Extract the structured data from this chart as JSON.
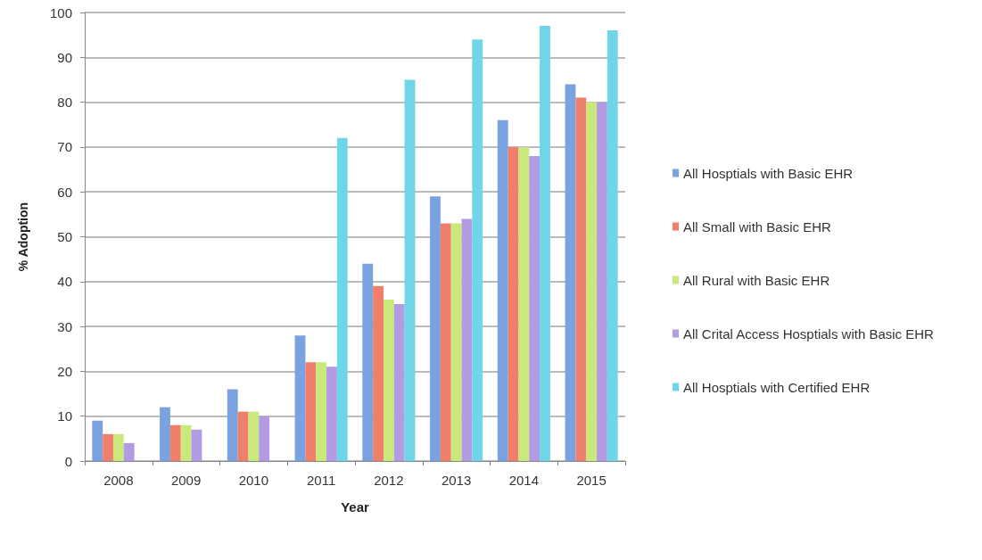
{
  "chart_data": {
    "type": "bar",
    "xlabel": "Year",
    "ylabel": "% Adoption",
    "categories": [
      "2008",
      "2009",
      "2010",
      "2011",
      "2012",
      "2013",
      "2014",
      "2015"
    ],
    "series": [
      {
        "name": "All Hosptials with Basic EHR",
        "color": "#7aa2e0",
        "values": [
          9,
          12,
          16,
          28,
          44,
          59,
          76,
          84
        ]
      },
      {
        "name": "All Small with Basic EHR",
        "color": "#ef7f6a",
        "values": [
          6,
          8,
          11,
          22,
          39,
          53,
          70,
          81
        ]
      },
      {
        "name": "All Rural with Basic EHR",
        "color": "#c9e97a",
        "values": [
          6,
          8,
          11,
          22,
          36,
          53,
          70,
          80
        ]
      },
      {
        "name": "All Crital Access Hosptials with Basic EHR",
        "color": "#b39be3",
        "values": [
          4,
          7,
          10,
          21,
          35,
          54,
          68,
          80
        ]
      },
      {
        "name": "All Hosptials with Certified EHR",
        "color": "#6fd6ea",
        "values": [
          null,
          null,
          null,
          72,
          85,
          94,
          97,
          96
        ]
      }
    ],
    "ylim": [
      0,
      100
    ],
    "yticks": [
      0,
      10,
      20,
      30,
      40,
      50,
      60,
      70,
      80,
      90,
      100
    ],
    "grid": "y",
    "legend": "right"
  }
}
